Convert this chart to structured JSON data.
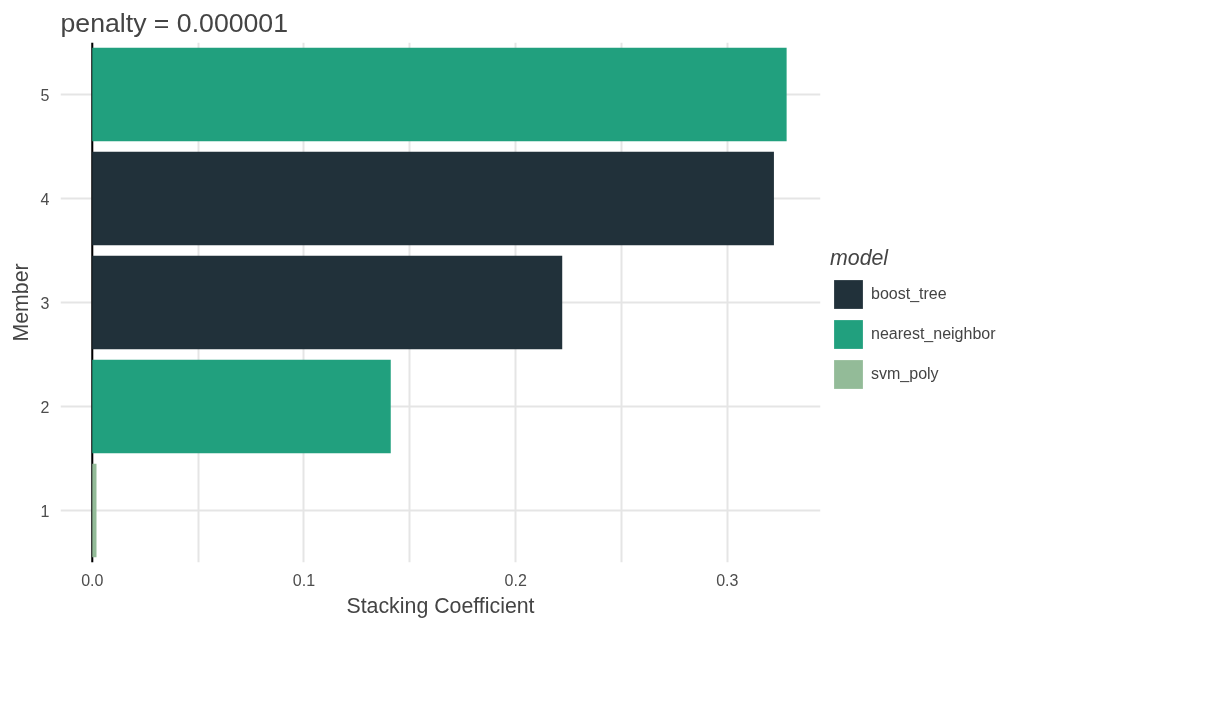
{
  "chart_data": {
    "type": "bar",
    "orientation": "horizontal",
    "stacked": true,
    "title": "penalty = 0.000001",
    "xlabel": "Stacking Coefficient",
    "ylabel": "Member",
    "legend_title": "model",
    "legend": "right",
    "categories": [
      "5",
      "4",
      "3",
      "2",
      "1"
    ],
    "series": [
      {
        "name": "boost_tree",
        "color": "#21313a",
        "values": [
          null,
          0.322,
          0.222,
          null,
          null
        ]
      },
      {
        "name": "nearest_neighbor",
        "color": "#21a07e",
        "values": [
          0.328,
          null,
          null,
          0.141,
          null
        ]
      },
      {
        "name": "svm_poly",
        "color": "#93bb98",
        "values": [
          null,
          null,
          null,
          null,
          0.002
        ]
      }
    ],
    "xlim": [
      -0.015,
      0.344
    ],
    "xticks": [
      {
        "value": 0,
        "label": "0.0"
      },
      {
        "value": 0.05,
        "label": null
      },
      {
        "value": 0.1,
        "label": "0.1"
      },
      {
        "value": 0.15,
        "label": null
      },
      {
        "value": 0.2,
        "label": "0.2"
      },
      {
        "value": 0.25,
        "label": null
      },
      {
        "value": 0.3,
        "label": "0.3"
      }
    ],
    "ref_lines": [
      {
        "axis": "x",
        "value": 0,
        "color": "#000000"
      }
    ],
    "grid": true
  }
}
